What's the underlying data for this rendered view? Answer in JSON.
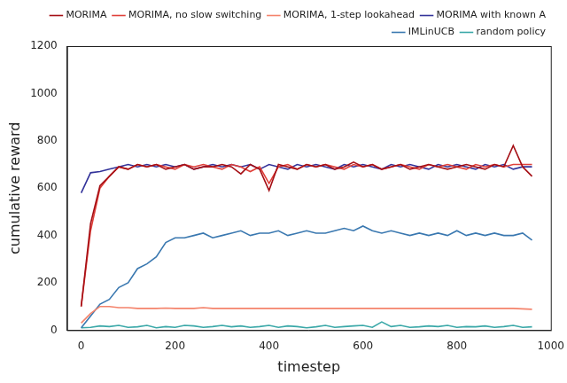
{
  "chart_data": {
    "type": "line",
    "x_label": "timestep",
    "y_label": "cumulative reward",
    "x": [
      0,
      20,
      40,
      60,
      80,
      100,
      120,
      140,
      160,
      180,
      200,
      220,
      240,
      260,
      280,
      300,
      320,
      340,
      360,
      380,
      400,
      420,
      440,
      460,
      480,
      500,
      520,
      540,
      560,
      580,
      600,
      620,
      640,
      660,
      680,
      700,
      720,
      740,
      760,
      780,
      800,
      820,
      840,
      860,
      880,
      900,
      920,
      940,
      960
    ],
    "series": [
      {
        "name": "MORIMA",
        "color": "#a50f15",
        "values": [
          100,
          450,
          610,
          650,
          690,
          680,
          700,
          690,
          700,
          680,
          690,
          700,
          680,
          690,
          690,
          700,
          690,
          660,
          700,
          680,
          590,
          700,
          690,
          680,
          700,
          690,
          700,
          680,
          690,
          710,
          690,
          700,
          680,
          690,
          700,
          680,
          690,
          700,
          690,
          680,
          690,
          700,
          690,
          680,
          700,
          690,
          780,
          690,
          650
        ]
      },
      {
        "name": "MORIMA, no slow switching",
        "color": "#e0403a",
        "values": [
          100,
          420,
          600,
          650,
          690,
          680,
          700,
          690,
          700,
          690,
          680,
          700,
          690,
          700,
          690,
          680,
          700,
          690,
          670,
          690,
          620,
          690,
          700,
          680,
          700,
          690,
          700,
          690,
          680,
          700,
          690,
          700,
          680,
          690,
          700,
          690,
          680,
          700,
          690,
          700,
          690,
          680,
          700,
          690,
          700,
          690,
          700,
          700,
          700
        ]
      },
      {
        "name": "MORIMA, 1-step lookahead",
        "color": "#f4836b",
        "values": [
          30,
          70,
          100,
          100,
          95,
          95,
          92,
          92,
          92,
          93,
          92,
          92,
          92,
          95,
          92,
          92,
          92,
          92,
          92,
          92,
          92,
          92,
          92,
          92,
          92,
          92,
          92,
          92,
          92,
          92,
          92,
          92,
          92,
          92,
          92,
          92,
          92,
          92,
          92,
          92,
          92,
          92,
          92,
          92,
          92,
          92,
          92,
          90,
          88
        ]
      },
      {
        "name": "MORIMA with known A",
        "color": "#33339a",
        "values": [
          580,
          665,
          670,
          680,
          690,
          700,
          690,
          700,
          690,
          700,
          690,
          700,
          680,
          690,
          700,
          690,
          700,
          690,
          700,
          680,
          700,
          690,
          680,
          700,
          690,
          700,
          690,
          680,
          700,
          690,
          700,
          690,
          680,
          700,
          690,
          700,
          690,
          680,
          700,
          690,
          700,
          690,
          680,
          700,
          690,
          700,
          680,
          690,
          690
        ]
      },
      {
        "name": "IMLinUCB",
        "color": "#3a78b0",
        "values": [
          10,
          60,
          110,
          130,
          180,
          200,
          260,
          280,
          310,
          370,
          390,
          390,
          400,
          410,
          390,
          400,
          410,
          420,
          400,
          410,
          410,
          420,
          400,
          410,
          420,
          410,
          410,
          420,
          430,
          420,
          440,
          420,
          410,
          420,
          410,
          400,
          410,
          400,
          410,
          400,
          420,
          400,
          410,
          400,
          410,
          400,
          400,
          410,
          380
        ]
      },
      {
        "name": "random policy",
        "color": "#3aa8a8",
        "values": [
          10,
          12,
          18,
          15,
          20,
          12,
          14,
          20,
          10,
          15,
          12,
          20,
          18,
          12,
          15,
          20,
          14,
          18,
          12,
          15,
          20,
          12,
          18,
          15,
          10,
          14,
          20,
          12,
          15,
          18,
          20,
          12,
          35,
          15,
          20,
          12,
          14,
          18,
          15,
          20,
          12,
          15,
          14,
          18,
          12,
          15,
          20,
          12,
          14
        ]
      }
    ],
    "xlim": [
      -30,
      1000
    ],
    "ylim": [
      0,
      1200
    ],
    "xticks": [
      0,
      200,
      400,
      600,
      800,
      1000
    ],
    "yticks": [
      0,
      200,
      400,
      600,
      800,
      1000,
      1200
    ],
    "legend": "upper right",
    "grid": false
  }
}
